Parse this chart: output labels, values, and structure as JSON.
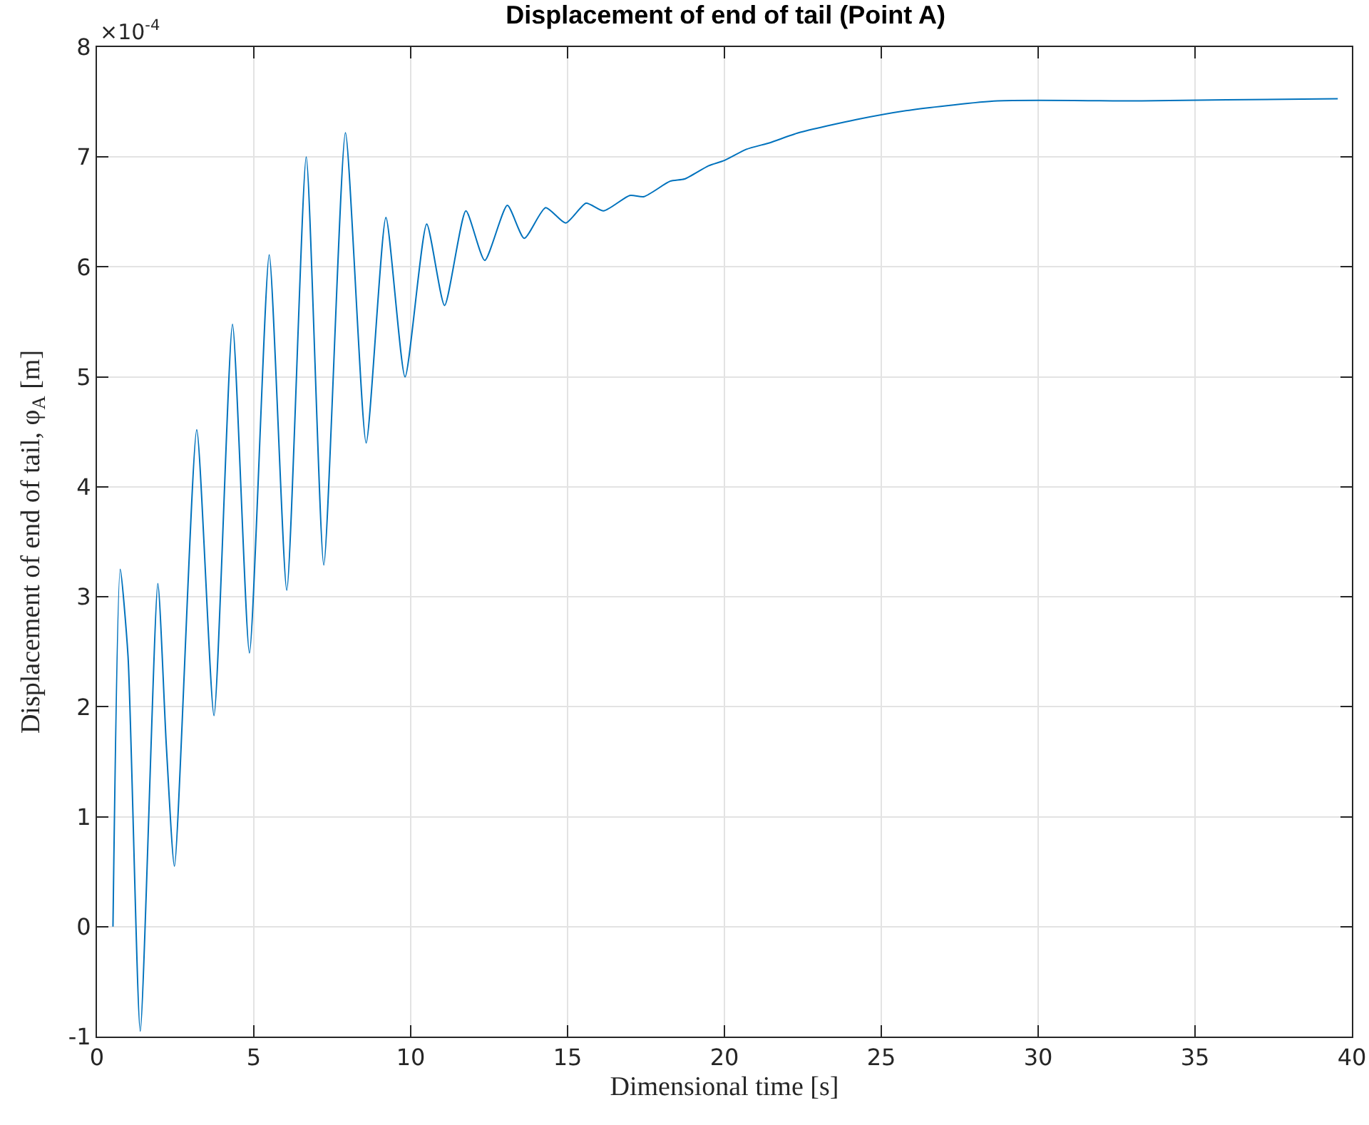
{
  "chart_data": {
    "type": "line",
    "title": "Displacement of end of tail (Point A)",
    "xlabel": "Dimensional time [s]",
    "ylabel": "Displacement of end of tail, φ$_{A}$ [m]",
    "annotations": [
      "×10$^{-4}$"
    ],
    "x": [
      0.51,
      0.74,
      0.99,
      1.38,
      1.94,
      2.21,
      2.47,
      3.18,
      3.73,
      4.32,
      4.86,
      5.49,
      6.05,
      6.67,
      7.23,
      7.92,
      8.58,
      9.21,
      9.82,
      10.51,
      11.08,
      11.76,
      12.36,
      13.08,
      13.62,
      14.3,
      14.94,
      15.59,
      16.15,
      16.98,
      17.44,
      18.27,
      18.73,
      19.49,
      20.01,
      20.7,
      21.45,
      22.36,
      24.2,
      26,
      28.7,
      33.3,
      36,
      39.55
    ],
    "series": [
      {
        "color": "#0072bd",
        "values": [
          0,
          3.25,
          2.46,
          -0.95,
          3.12,
          1.65,
          0.55,
          4.52,
          1.92,
          5.48,
          2.49,
          6.11,
          3.06,
          7.0,
          3.29,
          7.22,
          4.4,
          6.45,
          5.0,
          6.39,
          5.65,
          6.51,
          6.06,
          6.56,
          6.26,
          6.54,
          6.4,
          6.58,
          6.51,
          6.65,
          6.64,
          6.78,
          6.8,
          6.92,
          6.97,
          7.07,
          7.13,
          7.22,
          7.34,
          7.43,
          7.51,
          7.51,
          7.52,
          7.53
        ]
      }
    ],
    "xlim": [
      0,
      40
    ],
    "xticks": [
      0,
      5,
      10,
      15,
      20,
      25,
      30,
      35,
      40
    ],
    "ylim": [
      -1,
      8
    ],
    "yticks": [
      -1,
      0,
      1,
      2,
      3,
      4,
      5,
      6,
      7,
      8
    ],
    "grid": true
  }
}
